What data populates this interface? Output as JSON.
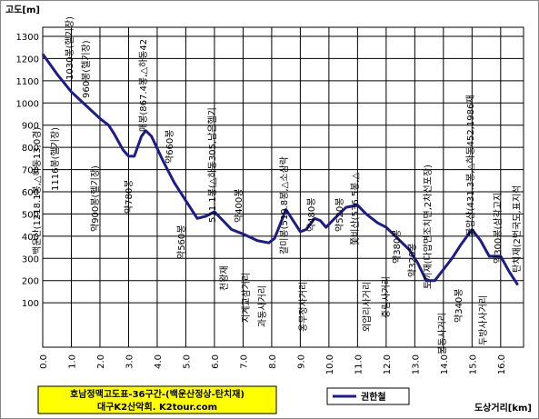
{
  "chart_data": {
    "type": "line",
    "y_label": "고도[m]",
    "x_label": "도상거리[km]",
    "title_lines": [
      "호남정맥고도표-36구간-(백운산정상-탄치재)",
      "대구K2산악회. K2tour.com"
    ],
    "x": [
      0,
      0.5,
      1.0,
      1.5,
      2.0,
      2.3,
      2.5,
      2.8,
      3.0,
      3.2,
      3.45,
      3.6,
      3.8,
      4.2,
      4.6,
      5.0,
      5.4,
      5.7,
      6.0,
      6.3,
      6.6,
      7.0,
      7.5,
      7.9,
      8.1,
      8.5,
      8.8,
      9.0,
      9.2,
      9.5,
      9.7,
      9.9,
      10.2,
      10.6,
      11.0,
      11.3,
      11.7,
      12.0,
      12.4,
      12.8,
      13.1,
      13.4,
      13.7,
      14.0,
      14.3,
      14.6,
      15.0,
      15.3,
      15.6,
      16.0,
      16.3,
      16.6
    ],
    "series": [
      {
        "name": "권한철",
        "color": "#1c1c8a",
        "values": [
          1220,
          1130,
          1050,
          990,
          930,
          900,
          860,
          790,
          760,
          760,
          850,
          875,
          850,
          740,
          640,
          560,
          480,
          490,
          510,
          470,
          430,
          410,
          380,
          370,
          390,
          520,
          460,
          420,
          430,
          480,
          470,
          440,
          480,
          530,
          540,
          500,
          460,
          440,
          390,
          340,
          280,
          200,
          200,
          250,
          300,
          360,
          430,
          380,
          310,
          310,
          240,
          180
        ]
      }
    ],
    "xlim": [
      0,
      16.8
    ],
    "ylim": [
      -100,
      1300
    ],
    "xticks": [
      {
        "value": 0,
        "label": "0.0"
      },
      {
        "value": 1,
        "label": "1.0"
      },
      {
        "value": 2,
        "label": "2.0"
      },
      {
        "value": 3,
        "label": "3.0"
      },
      {
        "value": 4,
        "label": "4.0"
      },
      {
        "value": 5,
        "label": "5.0"
      },
      {
        "value": 6,
        "label": "6.0"
      },
      {
        "value": 7,
        "label": "7.0"
      },
      {
        "value": 8,
        "label": "8.0"
      },
      {
        "value": 9,
        "label": "9.0"
      },
      {
        "value": 10,
        "label": "10.0"
      },
      {
        "value": 11,
        "label": "11.0"
      },
      {
        "value": 12,
        "label": "12.0"
      },
      {
        "value": 13,
        "label": "13.0"
      },
      {
        "value": 14,
        "label": "14.0"
      },
      {
        "value": 15,
        "label": "15.0"
      },
      {
        "value": 16,
        "label": "16.0"
      }
    ],
    "yticks": [
      100,
      200,
      300,
      400,
      500,
      600,
      700,
      800,
      900,
      1000,
      1100,
      1200,
      1300
    ],
    "annotations": [
      "백운산(1218.1봉,△하동13,0경)",
      "1116봉(헬기장)",
      "1030봉(헬기장)",
      "960봉(헬기장)",
      "약900봉(헬기장)",
      "약780봉",
      "매봉(867.4봉,△하동42",
      "약660봉",
      "약560봉",
      "511.1봉(△하동305,남은헬기",
      "천왕재",
      "약400봉",
      "지계교삼거리",
      "과동사거리",
      "갈미봉(519.8봉,△소삼락",
      "옹무정사거리",
      "약480봉",
      "약520봉",
      "쫓비산(536.5봉,△",
      "외압리사거리",
      "중림사거리",
      "약380봉",
      "약320봉",
      "토끼재(다압면조치면,2차선포장)",
      "불동사거리",
      "약340봉",
      "불암산(431.3봉,△하동452,1986재",
      "두방사사거리",
      "약300봉(삼각고지",
      "탄치재(2번국도,표지석"
    ]
  }
}
